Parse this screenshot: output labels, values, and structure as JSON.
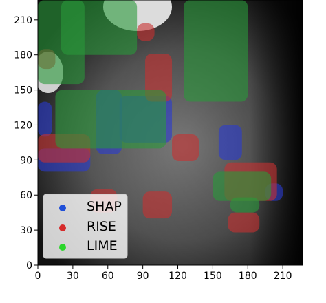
{
  "chart_data": {
    "type": "heatmap",
    "title": "",
    "xlabel": "",
    "ylabel": "",
    "xlim": [
      0,
      227
    ],
    "ylim": [
      0,
      227
    ],
    "x_ticks": [
      0,
      30,
      60,
      90,
      120,
      150,
      180,
      210
    ],
    "y_ticks": [
      0,
      30,
      60,
      90,
      120,
      150,
      180,
      210
    ],
    "grid": false,
    "legend_position": "bottom-left",
    "background": "grayscale medical image",
    "legend": [
      {
        "label": "SHAP",
        "color": "#1f4fd8"
      },
      {
        "label": "RISE",
        "color": "#d62b2b"
      },
      {
        "label": "LIME",
        "color": "#2bd62b"
      }
    ],
    "series": [
      {
        "name": "SHAP",
        "color": "#2a3ad0",
        "regions": [
          {
            "x": [
              0,
              12
            ],
            "y": [
              110,
              140
            ]
          },
          {
            "x": [
              0,
              45
            ],
            "y": [
              80,
              100
            ]
          },
          {
            "x": [
              50,
              72
            ],
            "y": [
              95,
              150
            ]
          },
          {
            "x": [
              70,
              115
            ],
            "y": [
              105,
              145
            ]
          },
          {
            "x": [
              155,
              175
            ],
            "y": [
              90,
              120
            ]
          },
          {
            "x": [
              195,
              210
            ],
            "y": [
              55,
              70
            ]
          }
        ]
      },
      {
        "name": "RISE",
        "color": "#c83030",
        "regions": [
          {
            "x": [
              0,
              45
            ],
            "y": [
              88,
              112
            ]
          },
          {
            "x": [
              92,
              115
            ],
            "y": [
              140,
              181
            ]
          },
          {
            "x": [
              115,
              138
            ],
            "y": [
              89,
              112
            ]
          },
          {
            "x": [
              90,
              115
            ],
            "y": [
              40,
              63
            ]
          },
          {
            "x": [
              45,
              68
            ],
            "y": [
              45,
              65
            ]
          },
          {
            "x": [
              160,
              205
            ],
            "y": [
              55,
              88
            ]
          },
          {
            "x": [
              163,
              190
            ],
            "y": [
              28,
              45
            ]
          },
          {
            "x": [
              85,
              100
            ],
            "y": [
              192,
              207
            ]
          },
          {
            "x": [
              0,
              15
            ],
            "y": [
              168,
              185
            ]
          }
        ]
      },
      {
        "name": "LIME",
        "color": "#2a9a3a",
        "regions": [
          {
            "x": [
              0,
              40
            ],
            "y": [
              155,
              227
            ]
          },
          {
            "x": [
              20,
              85
            ],
            "y": [
              180,
              227
            ]
          },
          {
            "x": [
              125,
              180
            ],
            "y": [
              140,
              227
            ]
          },
          {
            "x": [
              15,
              110
            ],
            "y": [
              100,
              150
            ]
          },
          {
            "x": [
              150,
              200
            ],
            "y": [
              55,
              80
            ]
          },
          {
            "x": [
              165,
              190
            ],
            "y": [
              45,
              58
            ]
          }
        ]
      }
    ]
  }
}
